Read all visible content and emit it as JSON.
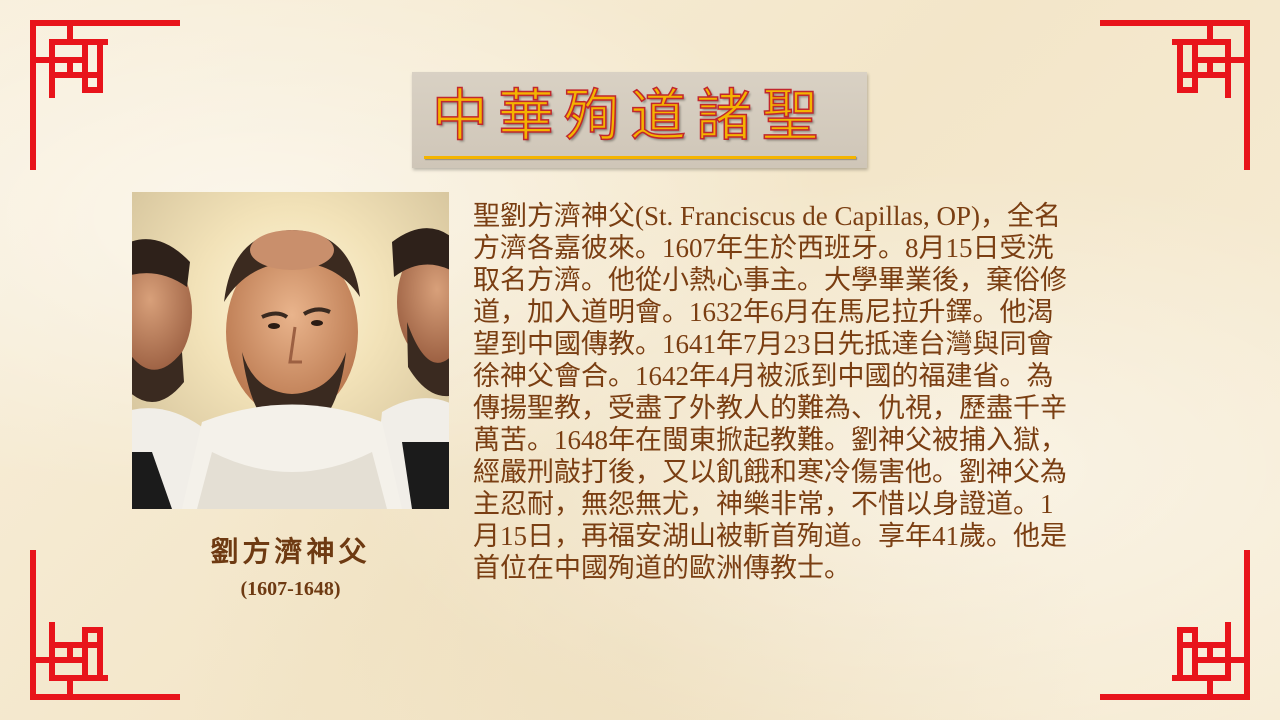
{
  "title": "中華殉道諸聖",
  "saint": {
    "name": "劉方濟神父",
    "years": "(1607-1648)"
  },
  "bio_lines": [
    "聖劉方濟神父(St. Franciscus de Capillas, OP)，全名",
    "方濟各嘉彼來。1607年生於西班牙。8月15日受洗",
    "取名方濟。他從小熱心事主。大學畢業後，棄俗修",
    "道，加入道明會。1632年6月在馬尼拉升鐸。他渴",
    "望到中國傳教。1641年7月23日先抵達台灣與同會",
    "徐神父會合。1642年4月被派到中國的福建省。為",
    "傳揚聖教，受盡了外教人的難為、仇視，歷盡千辛",
    "萬苦。1648年在閩東掀起教難。劉神父被捕入獄，",
    "經嚴刑敲打後，又以飢餓和寒冷傷害他。劉神父為",
    "主忍耐，無怨無尤，神樂非常，不惜以身證道。1",
    "月15日，再福安湖山被斬首殉道。享年41歲。他是",
    "首位在中國殉道的歐洲傳教士。"
  ],
  "colors": {
    "frame_red": "#e8141b",
    "title_gold": "#f4b400",
    "text_brown": "#7a3e12"
  },
  "icons": [
    "corner-ornament-icon"
  ]
}
